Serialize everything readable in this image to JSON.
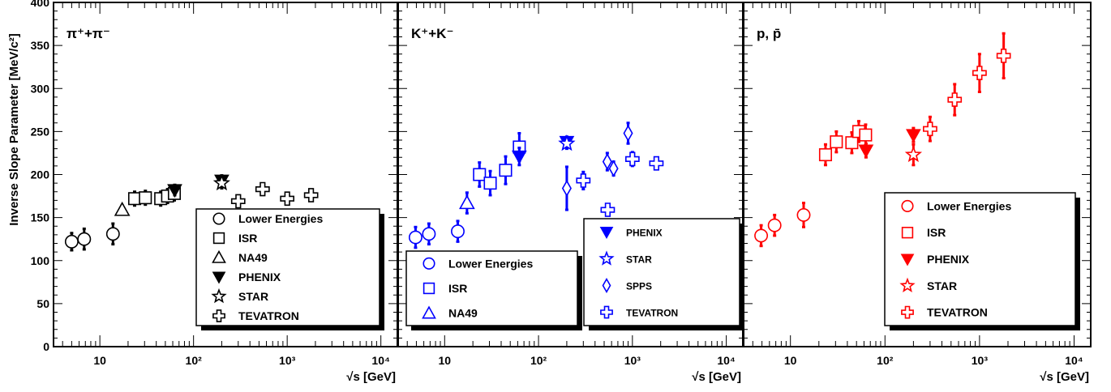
{
  "figure": {
    "ylabel": "Inverse Slope Parameter [MeV/c²]",
    "ylim": [
      0,
      400
    ],
    "yticks": [
      "0",
      "50",
      "100",
      "150",
      "200",
      "250",
      "300",
      "350",
      "400"
    ],
    "xlabel": "√s [GeV]",
    "xscale": "log",
    "xlim": [
      3.2,
      15000
    ],
    "xticks": [
      "10",
      "10²",
      "10³",
      "10⁴"
    ]
  },
  "chart_data": [
    {
      "type": "scatter",
      "title": "π⁺+π⁻",
      "color": "#000000",
      "legend_position": "bottom-center",
      "legend": [
        "Lower Energies",
        "ISR",
        "NA49",
        "PHENIX",
        "STAR",
        "TEVATRON"
      ],
      "series": [
        {
          "name": "Lower Energies",
          "marker": "circle",
          "points": [
            [
              5.0,
              122,
              10
            ],
            [
              6.8,
              125,
              12
            ],
            [
              13.8,
              131,
              12
            ]
          ]
        },
        {
          "name": "ISR",
          "marker": "square",
          "points": [
            [
              23.5,
              172,
              8
            ],
            [
              30.6,
              173,
              8
            ],
            [
              44.6,
              172,
              8
            ],
            [
              52.8,
              175,
              8
            ],
            [
              62.4,
              178,
              8
            ]
          ]
        },
        {
          "name": "NA49",
          "marker": "triangle-up",
          "points": [
            [
              17.3,
              159,
              5
            ]
          ]
        },
        {
          "name": "PHENIX",
          "marker": "triangle-down-filled",
          "points": [
            [
              63,
              182,
              6
            ],
            [
              200,
              193,
              6
            ]
          ]
        },
        {
          "name": "STAR",
          "marker": "star",
          "points": [
            [
              200,
              190,
              6
            ]
          ]
        },
        {
          "name": "TEVATRON",
          "marker": "cross",
          "points": [
            [
              300,
              169,
              6
            ],
            [
              546,
              183,
              6
            ],
            [
              1000,
              172,
              6
            ],
            [
              1800,
              176,
              6
            ]
          ]
        }
      ]
    },
    {
      "type": "scatter",
      "title": "K⁺+K⁻",
      "color": "#0000ff",
      "legend_position": "split: bottom-left and right",
      "legend": [
        "Lower Energies",
        "ISR",
        "NA49",
        "PHENIX",
        "STAR",
        "SPPS",
        "TEVATRON"
      ],
      "series": [
        {
          "name": "Lower Energies",
          "marker": "circle",
          "points": [
            [
              4.9,
              127,
              12
            ],
            [
              6.8,
              131,
              12
            ],
            [
              13.8,
              134,
              12
            ]
          ]
        },
        {
          "name": "ISR",
          "marker": "square",
          "points": [
            [
              23.5,
              200,
              14
            ],
            [
              30.6,
              190,
              14
            ],
            [
              44.6,
              205,
              16
            ],
            [
              62.4,
              232,
              16
            ]
          ]
        },
        {
          "name": "NA49",
          "marker": "triangle-up",
          "points": [
            [
              17.3,
              167,
              12
            ]
          ]
        },
        {
          "name": "PHENIX",
          "marker": "triangle-down-filled",
          "points": [
            [
              62.4,
              221,
              10
            ],
            [
              200,
              238,
              6
            ]
          ]
        },
        {
          "name": "STAR",
          "marker": "star",
          "points": [
            [
              200,
              236,
              6
            ]
          ]
        },
        {
          "name": "SPPS",
          "marker": "diamond",
          "points": [
            [
              200,
              184,
              25
            ],
            [
              540,
              215,
              10
            ],
            [
              630,
              207,
              8
            ],
            [
              900,
              248,
              12
            ]
          ]
        },
        {
          "name": "TEVATRON",
          "marker": "cross",
          "points": [
            [
              300,
              193,
              10
            ],
            [
              546,
              159,
              6
            ],
            [
              1000,
              218,
              8
            ],
            [
              1800,
              213,
              6
            ]
          ]
        }
      ]
    },
    {
      "type": "scatter",
      "title": "p, p̄",
      "color": "#ff0000",
      "legend_position": "bottom-right",
      "legend": [
        "Lower Energies",
        "ISR",
        "PHENIX",
        "STAR",
        "TEVATRON"
      ],
      "series": [
        {
          "name": "Lower Energies",
          "marker": "circle",
          "points": [
            [
              4.9,
              129,
              12
            ],
            [
              6.8,
              141,
              12
            ],
            [
              13.8,
              153,
              14
            ]
          ]
        },
        {
          "name": "ISR",
          "marker": "square",
          "points": [
            [
              23.5,
              223,
              12
            ],
            [
              30.6,
              238,
              12
            ],
            [
              44.6,
              237,
              12
            ],
            [
              52.8,
              250,
              12
            ],
            [
              62.4,
              246,
              12
            ]
          ]
        },
        {
          "name": "PHENIX",
          "marker": "triangle-down-filled",
          "points": [
            [
              63,
              228,
              8
            ],
            [
              200,
              246,
              8
            ]
          ]
        },
        {
          "name": "STAR",
          "marker": "star",
          "points": [
            [
              200,
              223,
              12
            ]
          ]
        },
        {
          "name": "TEVATRON",
          "marker": "cross",
          "points": [
            [
              300,
              253,
              14
            ],
            [
              546,
              287,
              18
            ],
            [
              1000,
              318,
              22
            ],
            [
              1800,
              338,
              26
            ]
          ]
        }
      ]
    }
  ]
}
